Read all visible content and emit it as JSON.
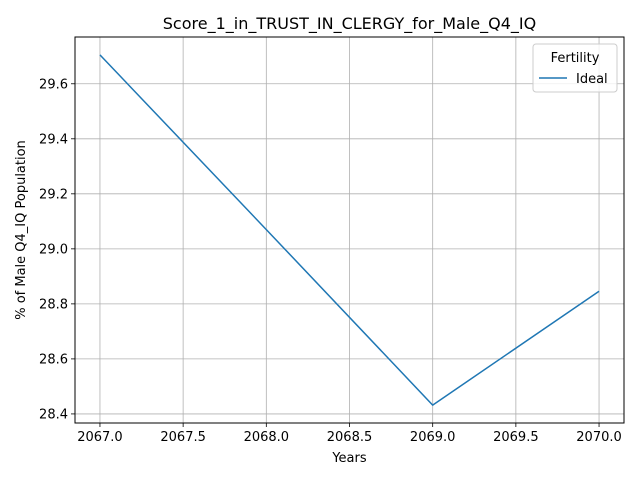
{
  "chart_data": {
    "type": "line",
    "title": "Score_1_in_TRUST_IN_CLERGY_for_Male_Q4_IQ",
    "xlabel": "Years",
    "ylabel": "% of Male Q4_IQ Population",
    "x": [
      2067,
      2068,
      2069,
      2070
    ],
    "series": [
      {
        "name": "Ideal",
        "values": [
          29.705,
          29.07,
          28.432,
          28.846
        ],
        "color": "#1f77b4"
      }
    ],
    "xlim": [
      2066.85,
      2070.15
    ],
    "ylim": [
      28.367,
      29.77
    ],
    "xticks": [
      2067.0,
      2067.5,
      2068.0,
      2068.5,
      2069.0,
      2069.5,
      2070.0
    ],
    "xtick_labels": [
      "2067.0",
      "2067.5",
      "2068.0",
      "2068.5",
      "2069.0",
      "2069.5",
      "2070.0"
    ],
    "yticks": [
      28.4,
      28.6,
      28.8,
      29.0,
      29.2,
      29.4,
      29.6
    ],
    "ytick_labels": [
      "28.4",
      "28.6",
      "28.8",
      "29.0",
      "29.2",
      "29.4",
      "29.6"
    ],
    "grid": true,
    "legend": {
      "title": "Fertility",
      "placement": "top-right"
    }
  }
}
